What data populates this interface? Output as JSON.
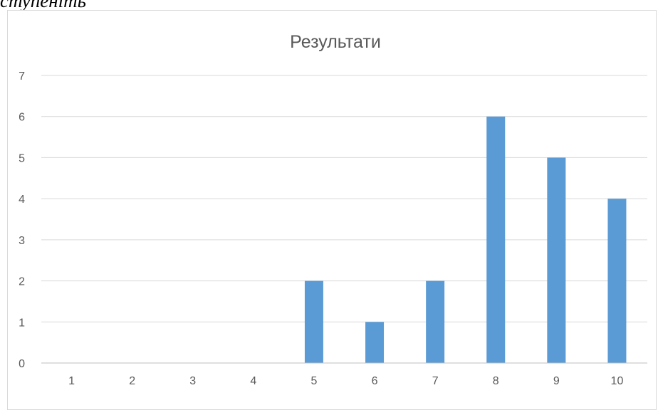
{
  "page": {
    "text_fragment": "ступеніть"
  },
  "chart_data": {
    "type": "bar",
    "title": "Результати",
    "xlabel": "",
    "ylabel": "",
    "categories": [
      "1",
      "2",
      "3",
      "4",
      "5",
      "6",
      "7",
      "8",
      "9",
      "10"
    ],
    "values": [
      0,
      0,
      0,
      0,
      2,
      1,
      2,
      6,
      5,
      4
    ],
    "ylim": [
      0,
      7
    ],
    "yticks": [
      0,
      1,
      2,
      3,
      4,
      5,
      6,
      7
    ],
    "grid": true,
    "legend": "none",
    "colors": {
      "bar": "#5b9bd5",
      "grid": "#d9d9d9",
      "axis": "#bfbfbf",
      "text": "#595959"
    }
  }
}
